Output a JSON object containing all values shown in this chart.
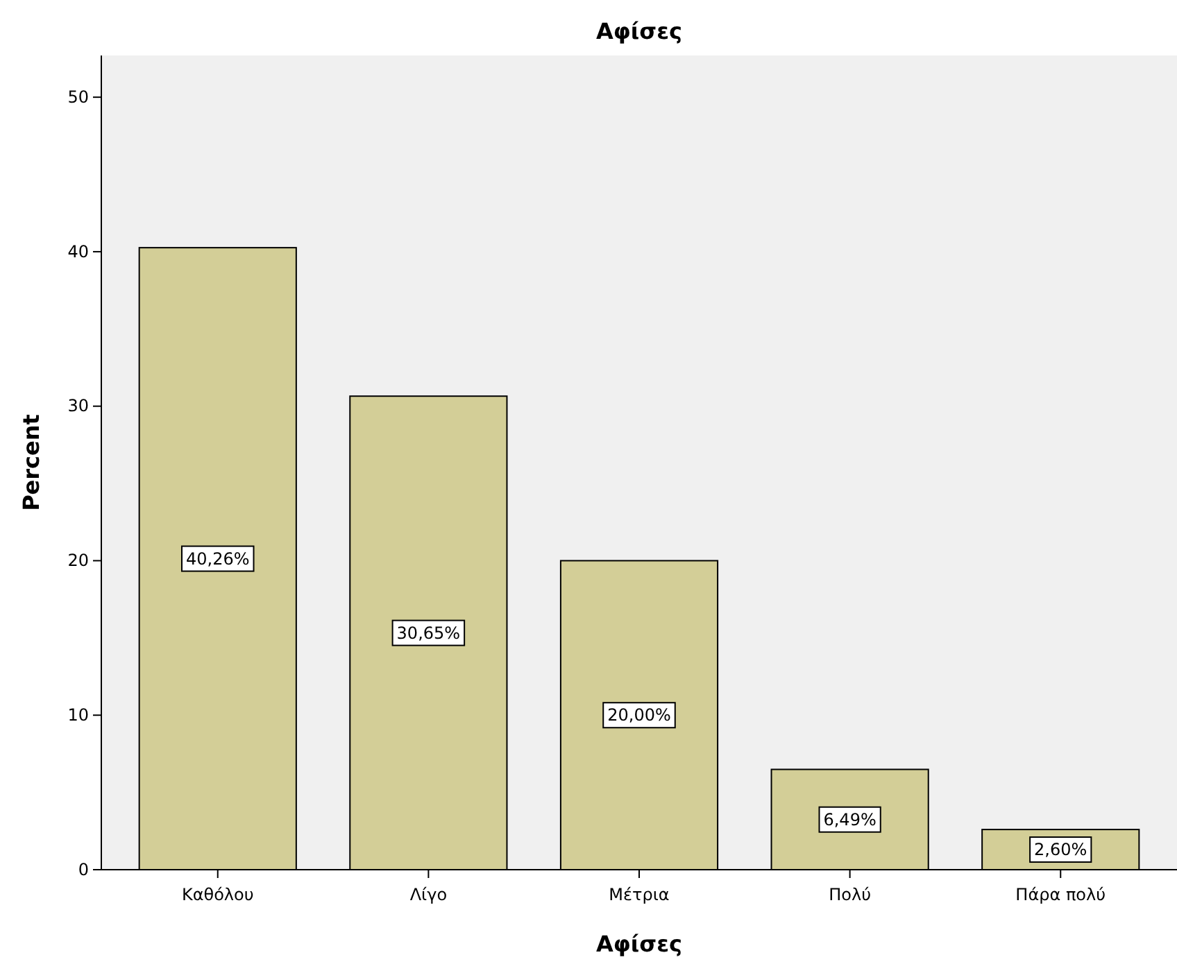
{
  "chart_data": {
    "type": "bar",
    "title": "Αφίσες",
    "xlabel": "Αφίσες",
    "ylabel": "Percent",
    "categories": [
      "Καθόλου",
      "Λίγο",
      "Μέτρια",
      "Πολύ",
      "Πάρα πολύ"
    ],
    "values": [
      40.26,
      30.65,
      20.0,
      6.49,
      2.6
    ],
    "value_labels": [
      "40,26%",
      "30,65%",
      "20,00%",
      "6,49%",
      "2,60%"
    ],
    "color": "#d3ce97",
    "ylim": [
      0,
      52.7
    ],
    "yticks": [
      0,
      10,
      20,
      30,
      40,
      50
    ],
    "grid": false
  }
}
